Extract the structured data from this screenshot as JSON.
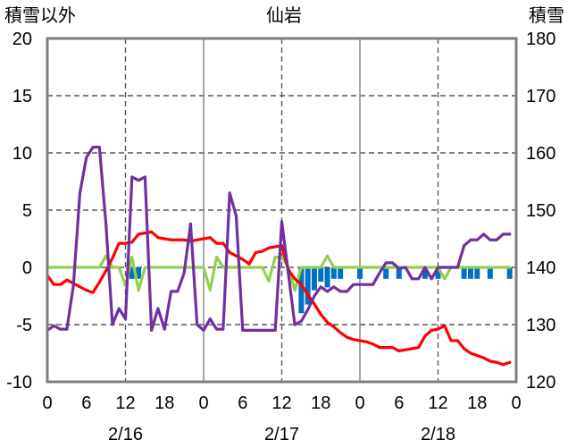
{
  "chart_data": {
    "type": "line",
    "title": "仙岩",
    "ylabel": "積雪以外",
    "y2label": "積雪",
    "ylim": [
      -10,
      20
    ],
    "y2lim": [
      120,
      180
    ],
    "yticks": [
      20,
      15,
      10,
      5,
      0,
      -5,
      -10
    ],
    "y2ticks": [
      180,
      170,
      160,
      150,
      140,
      130,
      120
    ],
    "x_tick_labels": [
      "0",
      "6",
      "12",
      "18",
      "0",
      "6",
      "12",
      "18",
      "0",
      "6",
      "12",
      "18",
      "0"
    ],
    "date_labels": [
      "2/16",
      "2/17",
      "2/18"
    ],
    "grid": true,
    "legend": "none",
    "categories": [
      "2/16 0",
      "2/16 1",
      "2/16 2",
      "2/16 3",
      "2/16 4",
      "2/16 5",
      "2/16 6",
      "2/16 7",
      "2/16 8",
      "2/16 9",
      "2/16 10",
      "2/16 11",
      "2/16 12",
      "2/16 13",
      "2/16 14",
      "2/16 15",
      "2/16 16",
      "2/16 17",
      "2/16 18",
      "2/16 19",
      "2/16 20",
      "2/16 21",
      "2/16 22",
      "2/16 23",
      "2/17 0",
      "2/17 1",
      "2/17 2",
      "2/17 3",
      "2/17 4",
      "2/17 5",
      "2/17 6",
      "2/17 7",
      "2/17 8",
      "2/17 9",
      "2/17 10",
      "2/17 11",
      "2/17 12",
      "2/17 13",
      "2/17 14",
      "2/17 15",
      "2/17 16",
      "2/17 17",
      "2/17 18",
      "2/17 19",
      "2/17 20",
      "2/17 21",
      "2/17 22",
      "2/17 23",
      "2/18 0",
      "2/18 1",
      "2/18 2",
      "2/18 3",
      "2/18 4",
      "2/18 5",
      "2/18 6",
      "2/18 7",
      "2/18 8",
      "2/18 9",
      "2/18 10",
      "2/18 11",
      "2/18 12",
      "2/18 13",
      "2/18 14",
      "2/18 15",
      "2/18 16",
      "2/18 17",
      "2/18 18",
      "2/18 19",
      "2/18 20",
      "2/18 21",
      "2/18 22",
      "2/18 23"
    ],
    "series": [
      {
        "axis": "left",
        "type": "line",
        "color": "#ff0000",
        "values": [
          -0.7,
          -1.5,
          -1.5,
          -1.1,
          -1.4,
          -1.7,
          -2.0,
          -2.2,
          -1.3,
          -0.3,
          0.8,
          2.1,
          2.1,
          2.2,
          2.9,
          3.0,
          3.1,
          2.6,
          2.5,
          2.4,
          2.4,
          2.4,
          2.3,
          2.4,
          2.5,
          2.6,
          2.1,
          2.1,
          1.3,
          1.0,
          0.7,
          0.3,
          1.3,
          1.4,
          1.7,
          1.8,
          1.9,
          -0.2,
          -1.0,
          -1.5,
          -2.4,
          -3.2,
          -4.1,
          -4.8,
          -5.2,
          -5.7,
          -6.1,
          -6.3,
          -6.4,
          -6.5,
          -6.7,
          -7.0,
          -7.0,
          -7.0,
          -7.3,
          -7.2,
          -7.1,
          -7.0,
          -6.0,
          -5.5,
          -5.4,
          -5.1,
          -6.4,
          -6.4,
          -7.1,
          -7.5,
          -7.7,
          -7.9,
          -8.2,
          -8.3,
          -8.5,
          -8.3
        ]
      },
      {
        "axis": "left",
        "type": "line",
        "color": "#7030a0",
        "values": [
          -5.5,
          -5.1,
          -5.4,
          -5.4,
          -1.6,
          6.5,
          9.6,
          10.5,
          10.5,
          3.8,
          -5.0,
          -3.6,
          -4.5,
          7.9,
          7.6,
          7.9,
          -5.5,
          -3.6,
          -5.4,
          -2.1,
          -2.1,
          -0.5,
          3.8,
          -5.0,
          -5.5,
          -4.5,
          -5.4,
          -5.4,
          6.5,
          4.5,
          -5.5,
          -5.5,
          -5.5,
          -5.5,
          -5.5,
          -5.5,
          4.0,
          -0.5,
          -5.0,
          -4.7,
          -3.7,
          -2.5,
          -1.7,
          -2.1,
          -1.7,
          -2.1,
          -2.1,
          -1.5,
          -1.5,
          -1.5,
          -1.5,
          -0.5,
          0.4,
          0.4,
          -0.1,
          0.0,
          -1.0,
          -1.0,
          0.0,
          -1.0,
          0.0,
          0.0,
          0.0,
          0.0,
          1.9,
          2.4,
          2.4,
          2.9,
          2.4,
          2.4,
          2.9,
          2.9
        ]
      },
      {
        "axis": "left",
        "type": "line",
        "color": "#92d050",
        "values": [
          0,
          0,
          0,
          0,
          0,
          0,
          0,
          0,
          0,
          1.0,
          0,
          0,
          -1.6,
          0.9,
          -2.0,
          0,
          0,
          0,
          0,
          0,
          0,
          0,
          0,
          0,
          0,
          -2.0,
          0.9,
          0,
          0,
          0,
          0,
          0,
          0,
          0,
          -1.2,
          0.9,
          0.9,
          0,
          -2.0,
          0,
          0,
          0,
          0,
          1.0,
          0,
          0,
          0,
          0,
          0,
          0,
          0,
          0,
          0,
          0,
          0,
          0,
          0,
          0,
          0,
          0,
          0,
          -1.0,
          0,
          0,
          0,
          0,
          0,
          0,
          0,
          0,
          0,
          0
        ]
      },
      {
        "axis": "right",
        "type": "bar",
        "color": "#0070c0",
        "values": [
          null,
          null,
          null,
          null,
          null,
          null,
          null,
          null,
          null,
          null,
          null,
          null,
          null,
          138,
          138,
          null,
          null,
          null,
          null,
          null,
          null,
          null,
          null,
          null,
          null,
          null,
          null,
          null,
          null,
          null,
          null,
          null,
          null,
          null,
          null,
          null,
          null,
          null,
          null,
          132,
          133.5,
          136,
          137.5,
          136.5,
          138,
          138,
          null,
          null,
          138,
          null,
          null,
          null,
          138,
          null,
          138,
          null,
          null,
          null,
          138,
          null,
          138,
          null,
          null,
          null,
          138,
          138,
          138,
          null,
          138,
          null,
          null,
          138
        ]
      }
    ]
  }
}
